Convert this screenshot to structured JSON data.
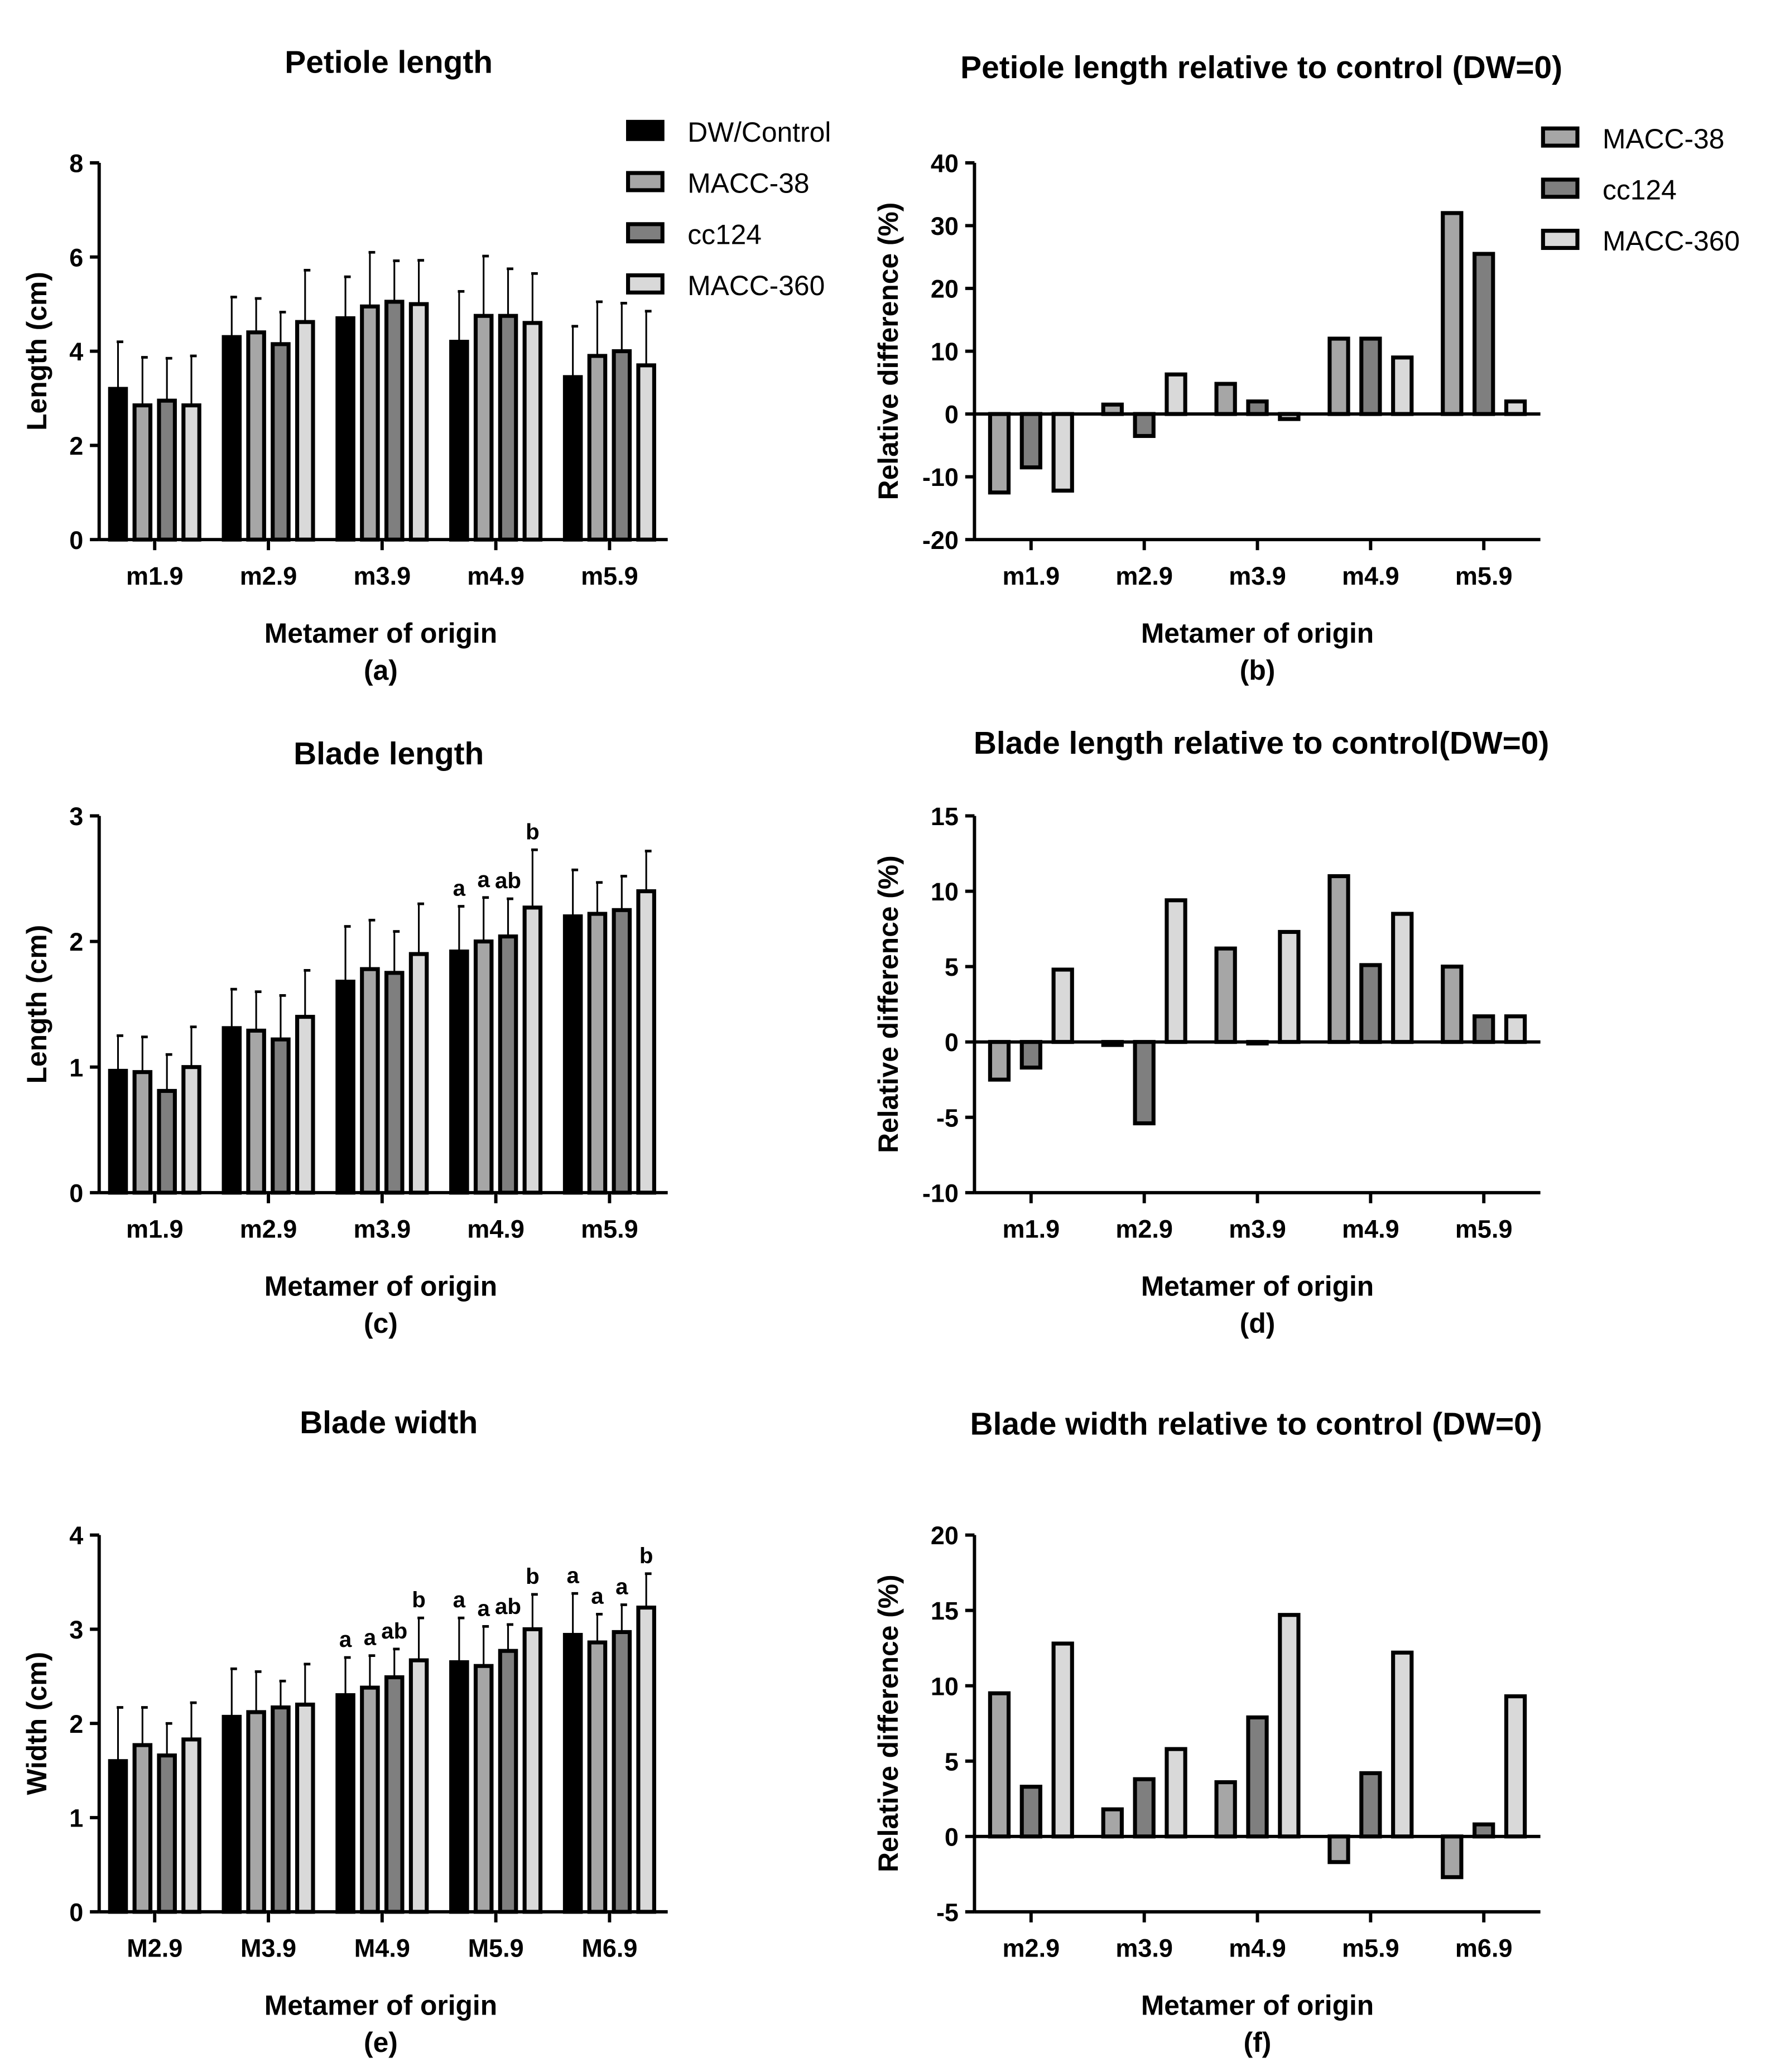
{
  "colors": {
    "DW/Control": "#000000",
    "MACC-38": "#a6a6a6",
    "cc124": "#7f7f7f",
    "MACC-360": "#d9d9d9"
  },
  "chart_data": [
    {
      "type": "bar",
      "panel": "(a)",
      "title": "Petiole length",
      "xlabel": "Metamer of origin",
      "ylabel": "Length (cm)",
      "ylim": [
        0,
        8
      ],
      "yticks": [
        0,
        2,
        4,
        6,
        8
      ],
      "legend": "top-right",
      "categories": [
        "m1.9",
        "m2.9",
        "m3.9",
        "m4.9",
        "m5.9"
      ],
      "series": [
        {
          "name": "DW/Control",
          "values": [
            3.2,
            4.3,
            4.7,
            4.2,
            3.45
          ],
          "err_top": [
            4.2,
            5.15,
            5.58,
            5.27,
            4.53
          ]
        },
        {
          "name": "MACC-38",
          "values": [
            2.85,
            4.4,
            4.95,
            4.75,
            3.9
          ],
          "err_top": [
            3.87,
            5.12,
            6.1,
            6.02,
            5.05
          ]
        },
        {
          "name": "cc124",
          "values": [
            2.95,
            4.15,
            5.05,
            4.75,
            4.0
          ],
          "err_top": [
            3.85,
            4.83,
            5.92,
            5.75,
            5.02
          ]
        },
        {
          "name": "MACC-360",
          "values": [
            2.85,
            4.62,
            5.0,
            4.6,
            3.7
          ],
          "err_top": [
            3.9,
            5.72,
            5.93,
            5.65,
            4.85
          ]
        }
      ]
    },
    {
      "type": "bar",
      "panel": "(b)",
      "title": "Petiole length relative to control (DW=0)",
      "xlabel": "Metamer of origin",
      "ylabel": "Relative difference (%)",
      "ylim": [
        -20,
        40
      ],
      "yticks": [
        -20,
        -10,
        0,
        10,
        20,
        30,
        40
      ],
      "legend": "top-right",
      "categories": [
        "m1.9",
        "m2.9",
        "m3.9",
        "m4.9",
        "m5.9"
      ],
      "series": [
        {
          "name": "MACC-38",
          "values": [
            -12.5,
            1.5,
            4.8,
            12,
            32
          ]
        },
        {
          "name": "cc124",
          "values": [
            -8.5,
            -3.5,
            2,
            12,
            25.5
          ]
        },
        {
          "name": "MACC-360",
          "values": [
            -12.2,
            6.3,
            -0.8,
            9,
            2
          ]
        }
      ]
    },
    {
      "type": "bar",
      "panel": "(c)",
      "title": "Blade length",
      "xlabel": "Metamer of origin",
      "ylabel": "Length (cm)",
      "ylim": [
        0,
        3
      ],
      "yticks": [
        0,
        1,
        2,
        3
      ],
      "categories": [
        "m1.9",
        "m2.9",
        "m3.9",
        "m4.9",
        "m5.9"
      ],
      "series": [
        {
          "name": "DW/Control",
          "values": [
            0.97,
            1.31,
            1.68,
            1.92,
            2.2
          ],
          "err_top": [
            1.25,
            1.62,
            2.12,
            2.28,
            2.57
          ],
          "sig": [
            "",
            "",
            "",
            "a",
            ""
          ]
        },
        {
          "name": "MACC-38",
          "values": [
            0.96,
            1.29,
            1.78,
            2.0,
            2.22
          ],
          "err_top": [
            1.24,
            1.6,
            2.17,
            2.35,
            2.47
          ],
          "sig": [
            "",
            "",
            "",
            "a",
            ""
          ]
        },
        {
          "name": "cc124",
          "values": [
            0.81,
            1.22,
            1.75,
            2.04,
            2.25
          ],
          "err_top": [
            1.1,
            1.57,
            2.08,
            2.34,
            2.52
          ],
          "sig": [
            "",
            "",
            "",
            "ab",
            ""
          ]
        },
        {
          "name": "MACC-360",
          "values": [
            1.0,
            1.4,
            1.9,
            2.27,
            2.4
          ],
          "err_top": [
            1.32,
            1.77,
            2.3,
            2.73,
            2.72
          ],
          "sig": [
            "",
            "",
            "",
            "b",
            ""
          ]
        }
      ]
    },
    {
      "type": "bar",
      "panel": "(d)",
      "title": "Blade length relative to control(DW=0)",
      "xlabel": "Metamer of origin",
      "ylabel": "Relative difference (%)",
      "ylim": [
        -10,
        15
      ],
      "yticks": [
        -10,
        -5,
        0,
        5,
        10,
        15
      ],
      "categories": [
        "m1.9",
        "m2.9",
        "m3.9",
        "m4.9",
        "m5.9"
      ],
      "series": [
        {
          "name": "MACC-38",
          "values": [
            -2.5,
            -0.2,
            6.2,
            11,
            5
          ]
        },
        {
          "name": "cc124",
          "values": [
            -1.7,
            -5.4,
            -0.1,
            5.1,
            1.7
          ]
        },
        {
          "name": "MACC-360",
          "values": [
            4.8,
            9.4,
            7.3,
            8.5,
            1.7
          ]
        }
      ]
    },
    {
      "type": "bar",
      "panel": "(e)",
      "title": "Blade width",
      "xlabel": "Metamer of origin",
      "ylabel": "Width (cm)",
      "ylim": [
        0,
        4
      ],
      "yticks": [
        0,
        1,
        2,
        3,
        4
      ],
      "categories": [
        "M2.9",
        "M3.9",
        "M4.9",
        "M5.9",
        "M6.9"
      ],
      "series": [
        {
          "name": "DW/Control",
          "values": [
            1.6,
            2.07,
            2.3,
            2.65,
            2.94
          ],
          "err_top": [
            2.17,
            2.58,
            2.7,
            3.12,
            3.38
          ],
          "sig": [
            "",
            "",
            "a",
            "a",
            "a"
          ]
        },
        {
          "name": "MACC-38",
          "values": [
            1.77,
            2.12,
            2.38,
            2.61,
            2.86
          ],
          "err_top": [
            2.17,
            2.55,
            2.72,
            3.03,
            3.16
          ],
          "sig": [
            "",
            "",
            "a",
            "a",
            "a"
          ]
        },
        {
          "name": "cc124",
          "values": [
            1.66,
            2.17,
            2.49,
            2.77,
            2.97
          ],
          "err_top": [
            2.0,
            2.45,
            2.79,
            3.05,
            3.26
          ],
          "sig": [
            "",
            "",
            "ab",
            "ab",
            "a"
          ]
        },
        {
          "name": "MACC-360",
          "values": [
            1.83,
            2.2,
            2.67,
            3.0,
            3.23
          ],
          "err_top": [
            2.22,
            2.63,
            3.12,
            3.37,
            3.59
          ],
          "sig": [
            "",
            "",
            "b",
            "b",
            "b"
          ]
        }
      ]
    },
    {
      "type": "bar",
      "panel": "(f)",
      "title": "Blade width relative to control (DW=0)",
      "xlabel": "Metamer of origin",
      "ylabel": "Relative difference (%)",
      "ylim": [
        -5,
        20
      ],
      "yticks": [
        -5,
        0,
        5,
        10,
        15,
        20
      ],
      "categories": [
        "m2.9",
        "m3.9",
        "m4.9",
        "m5.9",
        "m6.9"
      ],
      "series": [
        {
          "name": "MACC-38",
          "values": [
            9.5,
            1.8,
            3.6,
            -1.7,
            -2.7
          ]
        },
        {
          "name": "cc124",
          "values": [
            3.3,
            3.8,
            7.9,
            4.2,
            0.8
          ]
        },
        {
          "name": "MACC-360",
          "values": [
            12.8,
            5.8,
            14.7,
            12.2,
            9.3
          ]
        }
      ]
    }
  ]
}
